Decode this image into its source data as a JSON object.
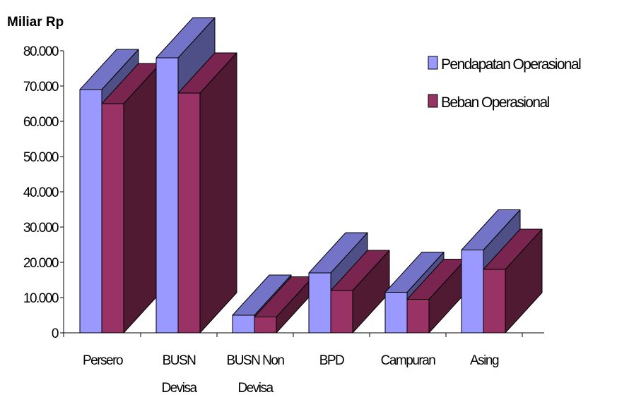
{
  "chart_data": {
    "type": "bar",
    "unit_label": "Miliar Rp",
    "categories": [
      [
        "Persero"
      ],
      [
        "BUSN",
        "Devisa"
      ],
      [
        "BUSN Non",
        "Devisa"
      ],
      [
        "BPD"
      ],
      [
        "Campuran"
      ],
      [
        "Asing"
      ]
    ],
    "series": [
      {
        "name": "Pendapatan Operasional",
        "values": [
          69000,
          78000,
          5000,
          17000,
          11500,
          23500
        ]
      },
      {
        "name": "Beban Operasional",
        "values": [
          65000,
          68000,
          4500,
          12000,
          9500,
          18000
        ]
      }
    ],
    "ylim": [
      0,
      80000
    ],
    "yticks": [
      {
        "value": 0,
        "label": "0"
      },
      {
        "value": 10000,
        "label": "10.000"
      },
      {
        "value": 20000,
        "label": "20.000"
      },
      {
        "value": 30000,
        "label": "30.000"
      },
      {
        "value": 40000,
        "label": "40.000"
      },
      {
        "value": 50000,
        "label": "50.000"
      },
      {
        "value": 60000,
        "label": "60.000"
      },
      {
        "value": 70000,
        "label": "70.000"
      },
      {
        "value": 80000,
        "label": "80.000"
      }
    ],
    "grid": false,
    "legend_position": "top-right",
    "colors": {
      "series_front": [
        "#9999ff",
        "#993366"
      ],
      "series_top": [
        "#7373c8",
        "#7a2450"
      ],
      "series_side": [
        "#4f4f88",
        "#4f1a32"
      ],
      "edge": "#000000"
    }
  }
}
